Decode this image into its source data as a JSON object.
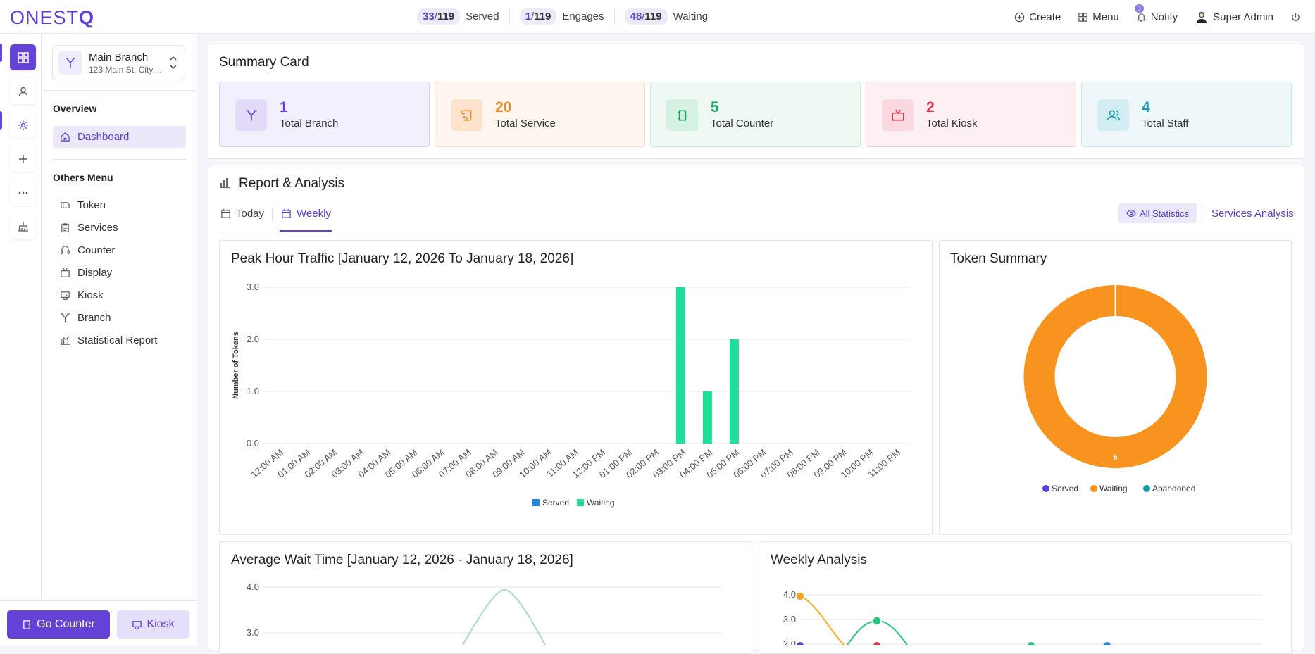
{
  "app": {
    "logo": "ONESTQ"
  },
  "topbar": {
    "stats": [
      {
        "value": "33",
        "total": "119",
        "label": "Served"
      },
      {
        "value": "1",
        "total": "119",
        "label": "Engages"
      },
      {
        "value": "48",
        "total": "119",
        "label": "Waiting"
      }
    ],
    "create": "Create",
    "menu": "Menu",
    "notify": "Notify",
    "notify_count": "0",
    "user": "Super Admin"
  },
  "sidebar": {
    "branch_name": "Main Branch",
    "branch_address": "123 Main St, City,...",
    "overview_heading": "Overview",
    "dashboard": "Dashboard",
    "others_heading": "Others Menu",
    "items": [
      "Token",
      "Services",
      "Counter",
      "Display",
      "Kiosk",
      "Branch",
      "Statistical Report"
    ],
    "go_counter": "Go Counter",
    "kiosk_button": "Kiosk"
  },
  "summary": {
    "title": "Summary Card",
    "cards": [
      {
        "value": "1",
        "label": "Total Branch"
      },
      {
        "value": "20",
        "label": "Total Service"
      },
      {
        "value": "5",
        "label": "Total Counter"
      },
      {
        "value": "2",
        "label": "Total Kiosk"
      },
      {
        "value": "4",
        "label": "Total Staff"
      }
    ]
  },
  "report": {
    "title": "Report & Analysis",
    "tabs": [
      "Today",
      "Weekly"
    ],
    "active_tab": "Weekly",
    "all_statistics": "All Statistics",
    "services_analysis": "Services Analysis"
  },
  "colors": {
    "accent": "#6243d6",
    "served": "#1e88e5",
    "waiting": "#22dd99",
    "donut_waiting": "#f7931e",
    "abandoned": "#1a9aa8"
  },
  "chart_data": [
    {
      "type": "bar",
      "title": "Peak Hour Traffic [January 12, 2026 To January 18, 2026]",
      "ylabel": "Number of Tokens",
      "ylim": [
        0,
        3
      ],
      "yticks": [
        "0.0",
        "1.0",
        "2.0",
        "3.0"
      ],
      "categories": [
        "12:00 AM",
        "01:00 AM",
        "02:00 AM",
        "03:00 AM",
        "04:00 AM",
        "05:00 AM",
        "06:00 AM",
        "07:00 AM",
        "08:00 AM",
        "09:00 AM",
        "10:00 AM",
        "11:00 AM",
        "12:00 PM",
        "01:00 PM",
        "02:00 PM",
        "03:00 PM",
        "04:00 PM",
        "05:00 PM",
        "06:00 PM",
        "07:00 PM",
        "08:00 PM",
        "09:00 PM",
        "10:00 PM",
        "11:00 PM"
      ],
      "series": [
        {
          "name": "Served",
          "values": [
            0,
            0,
            0,
            0,
            0,
            0,
            0,
            0,
            0,
            0,
            0,
            0,
            0,
            0,
            0,
            0,
            0,
            0,
            0,
            0,
            0,
            0,
            0,
            0
          ]
        },
        {
          "name": "Waiting",
          "values": [
            0,
            0,
            0,
            0,
            0,
            0,
            0,
            0,
            0,
            0,
            0,
            0,
            0,
            0,
            0,
            3,
            1,
            2,
            0,
            0,
            0,
            0,
            0,
            0
          ]
        }
      ],
      "legend": "bottom"
    },
    {
      "type": "pie",
      "title": "Token Summary",
      "labels": [
        "Served",
        "Waiting",
        "Abandoned"
      ],
      "values": [
        0,
        6,
        0
      ],
      "data_label": "6",
      "legend": "bottom"
    },
    {
      "type": "line",
      "title": "Average Wait Time [January 12, 2026 - January 18, 2026]",
      "yticks": [
        "3.0",
        "4.0"
      ]
    },
    {
      "type": "line",
      "title": "Weekly Analysis",
      "yticks": [
        "3.0",
        "4.0"
      ],
      "visible_point_labels": [
        "4.0"
      ]
    }
  ]
}
